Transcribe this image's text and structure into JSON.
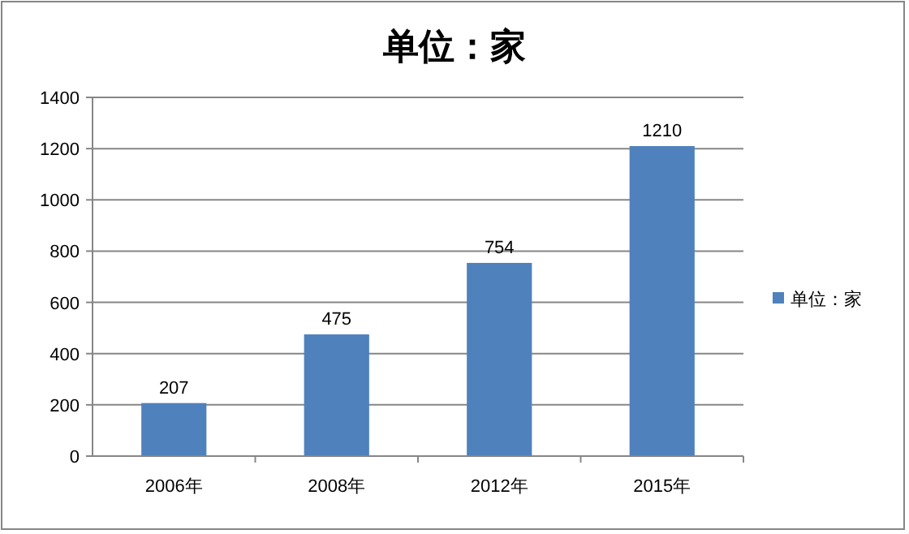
{
  "chart_data": {
    "type": "bar",
    "title": "单位：家",
    "categories": [
      "2006年",
      "2008年",
      "2012年",
      "2015年"
    ],
    "series": [
      {
        "name": "单位：家",
        "color": "#4f81bd",
        "values": [
          207,
          475,
          754,
          1210
        ]
      }
    ],
    "ylim": [
      0,
      1400
    ],
    "yticks": [
      0,
      200,
      400,
      600,
      800,
      1000,
      1200,
      1400
    ],
    "grid": "y",
    "legend": "right",
    "data_labels": true
  }
}
